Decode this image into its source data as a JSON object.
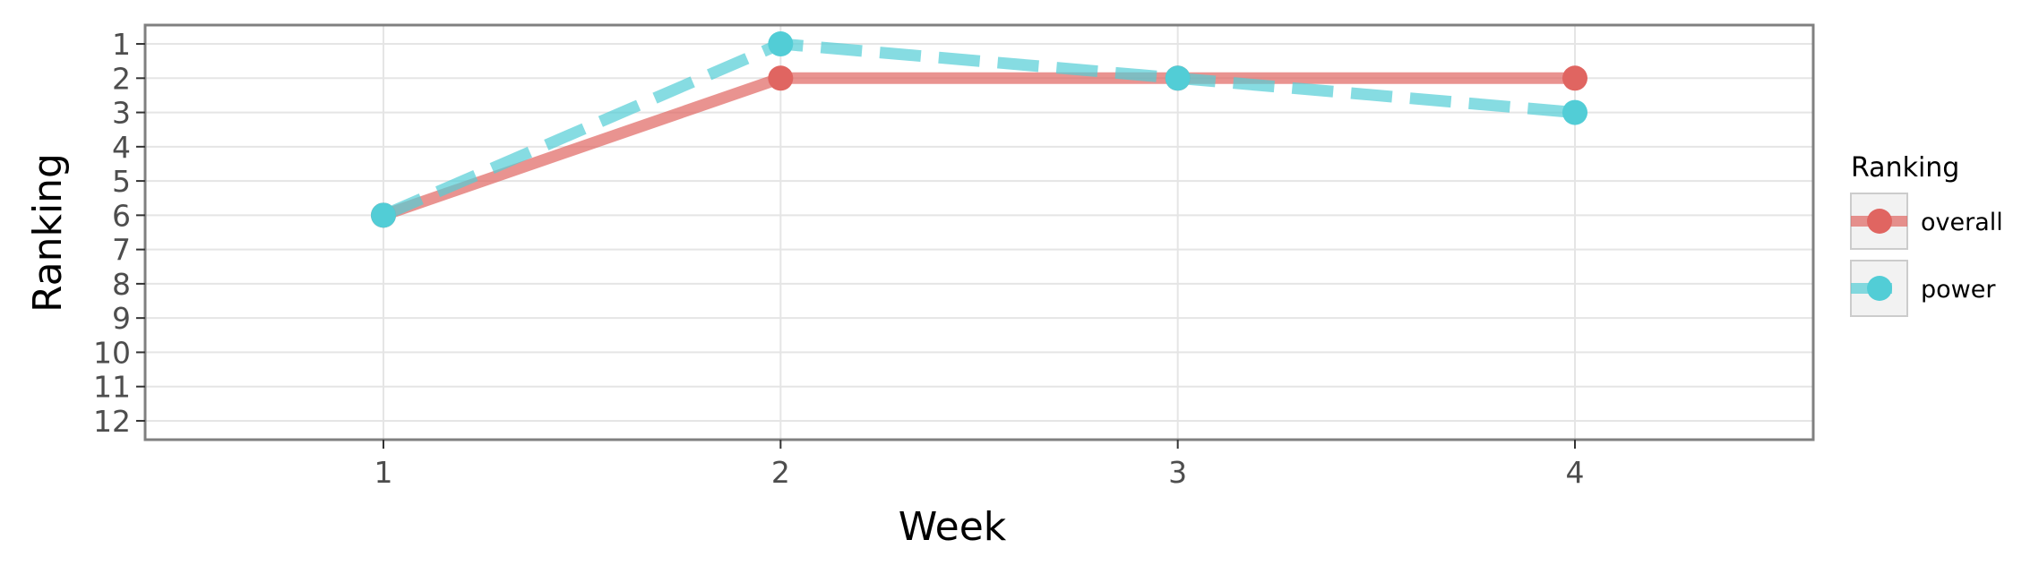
{
  "chart_data": {
    "type": "line",
    "title": "",
    "xlabel": "Week",
    "ylabel": "Ranking",
    "x": [
      1,
      2,
      3,
      4
    ],
    "x_ticks": [
      "1",
      "2",
      "3",
      "4"
    ],
    "xlim": [
      0.4,
      4.6
    ],
    "y_ticks": [
      "1",
      "2",
      "3",
      "4",
      "5",
      "6",
      "7",
      "8",
      "9",
      "10",
      "11",
      "12"
    ],
    "ylim": [
      0.45,
      12.55
    ],
    "y_reversed": true,
    "grid": true,
    "legend": {
      "title": "Ranking",
      "placement": "right"
    },
    "series": [
      {
        "name": "overall",
        "values": [
          6,
          2,
          2,
          2
        ],
        "color": "#e06561",
        "line_style": "solid"
      },
      {
        "name": "power",
        "values": [
          6,
          1,
          2,
          3
        ],
        "color": "#52cdd6",
        "line_style": "dashed"
      }
    ]
  }
}
